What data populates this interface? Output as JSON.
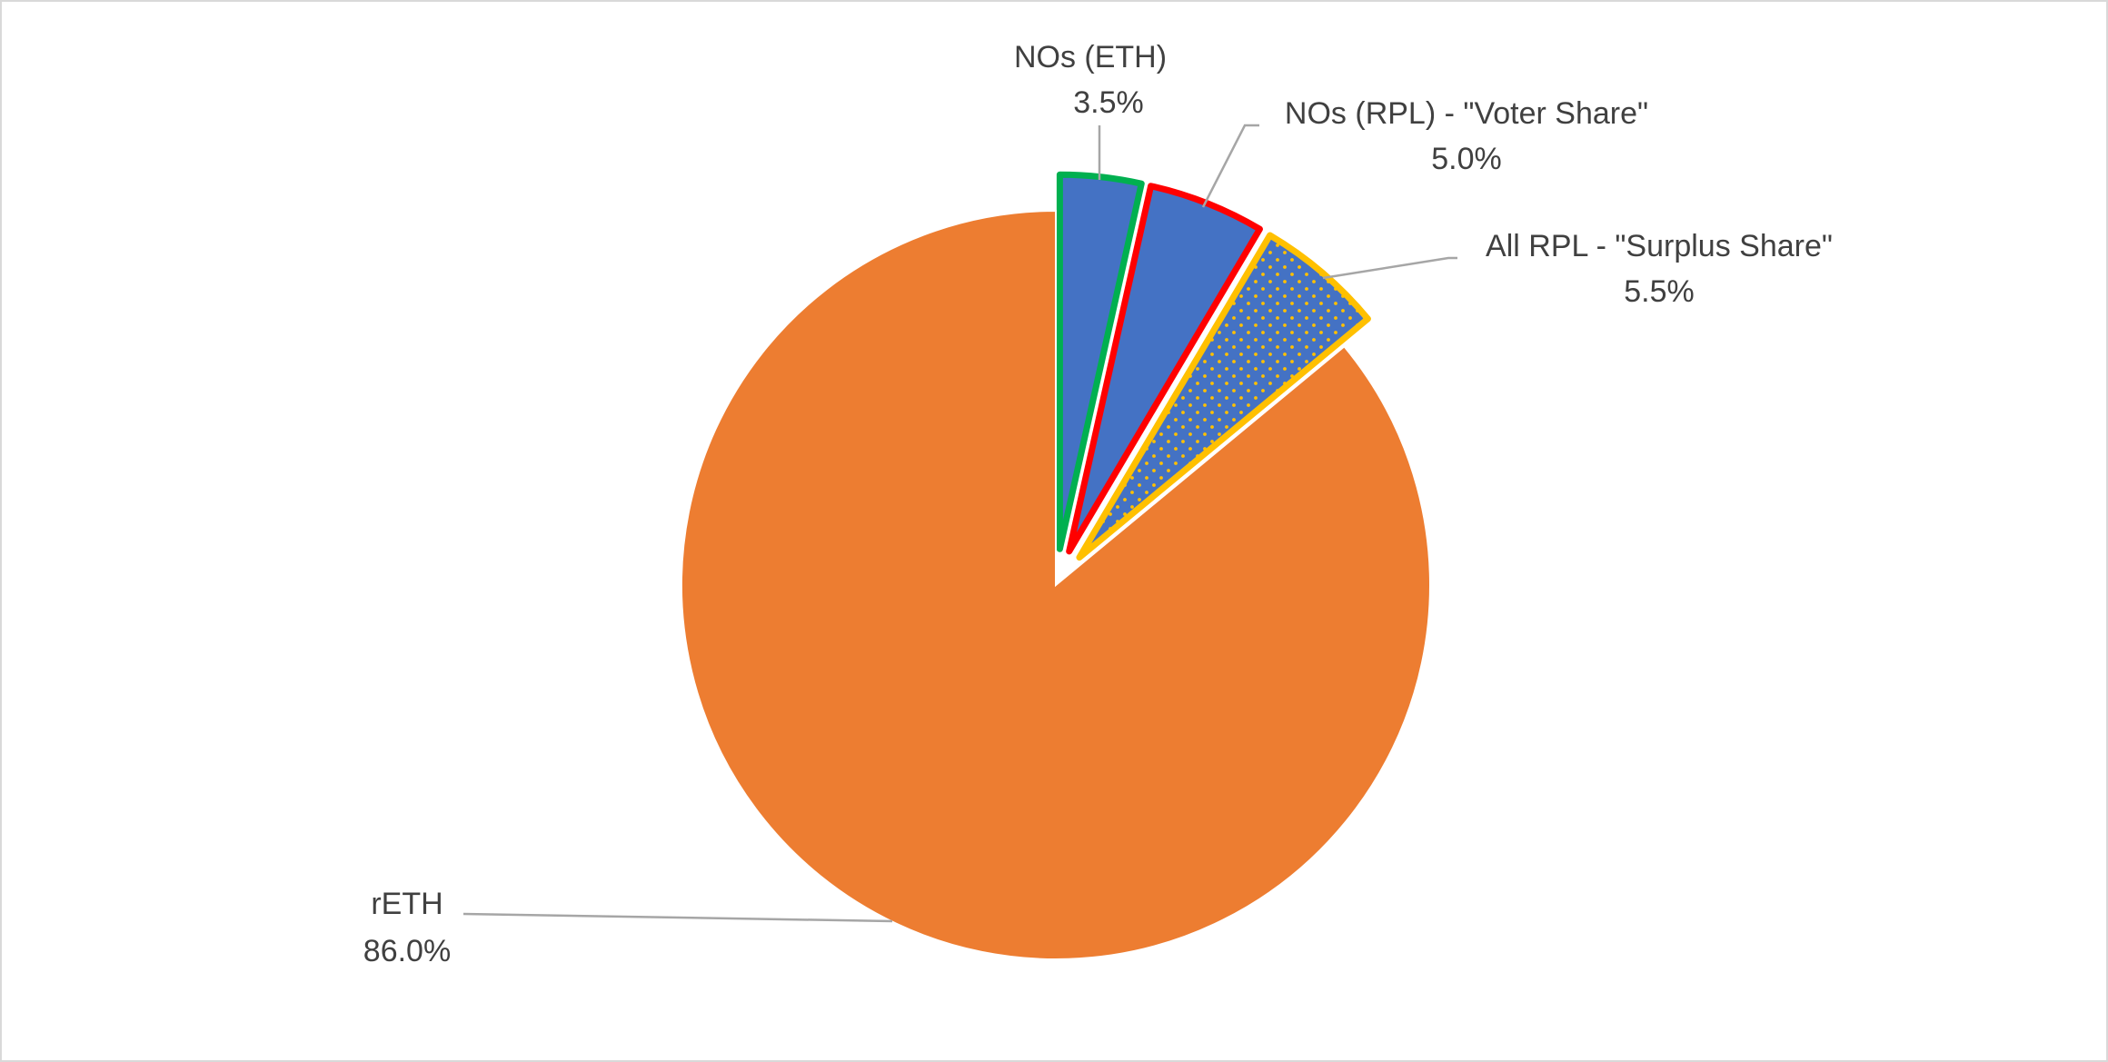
{
  "chart_data": {
    "type": "pie",
    "title": "",
    "start_angle_deg": 0,
    "direction": "clockwise",
    "slices": [
      {
        "name": "NOs (ETH)",
        "value": 3.5,
        "label": "3.5%",
        "fill": "#4472c4",
        "border": "#00b050",
        "pattern": "none",
        "exploded": true
      },
      {
        "name": "NOs (RPL) - \"Voter Share\"",
        "value": 5.0,
        "label": "5.0%",
        "fill": "#4472c4",
        "border": "#ff0000",
        "pattern": "none",
        "exploded": true
      },
      {
        "name": "All RPL - \"Surplus Share\"",
        "value": 5.5,
        "label": "5.5%",
        "fill": "#4472c4",
        "border": "#ffc000",
        "pattern": "dots",
        "exploded": true
      },
      {
        "name": "rETH",
        "value": 86.0,
        "label": "86.0%",
        "fill": "#ed7d31",
        "border": "none",
        "pattern": "none",
        "exploded": false
      }
    ],
    "legend": "none",
    "data_labels": "outside-with-leader-lines"
  }
}
